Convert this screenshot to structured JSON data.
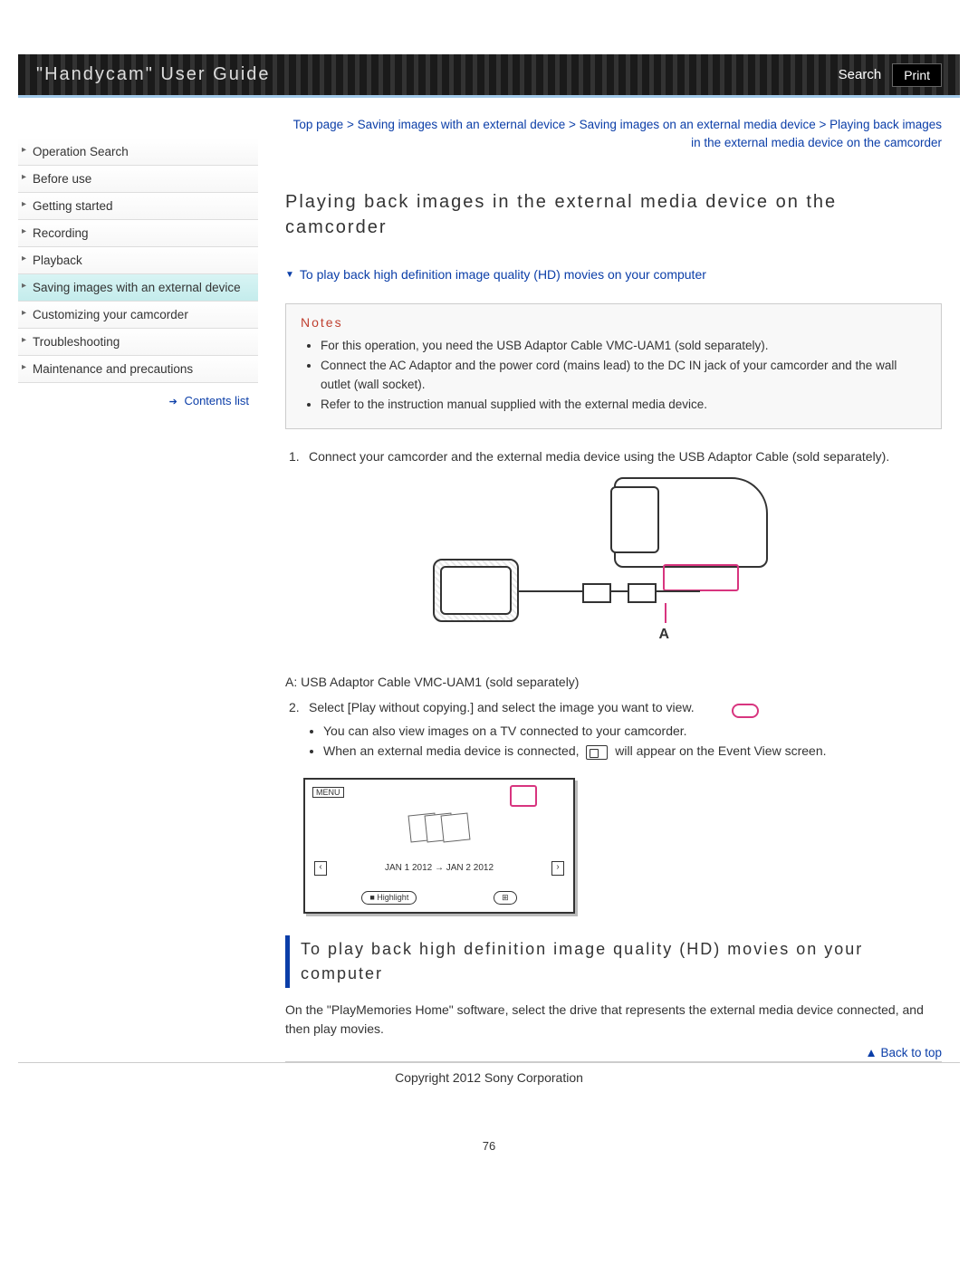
{
  "header": {
    "title": "\"Handycam\" User Guide",
    "search": "Search",
    "print": "Print"
  },
  "sidebar": {
    "items": [
      {
        "label": "Operation Search",
        "active": false
      },
      {
        "label": "Before use",
        "active": false
      },
      {
        "label": "Getting started",
        "active": false
      },
      {
        "label": "Recording",
        "active": false
      },
      {
        "label": "Playback",
        "active": false
      },
      {
        "label": "Saving images with an external device",
        "active": true
      },
      {
        "label": "Customizing your camcorder",
        "active": false
      },
      {
        "label": "Troubleshooting",
        "active": false
      },
      {
        "label": "Maintenance and precautions",
        "active": false
      }
    ],
    "contents_list": "Contents list"
  },
  "breadcrumb": {
    "parts": [
      "Top page",
      "Saving images with an external device",
      "Saving images on an external media device",
      "Playing back images in the external media device on the camcorder"
    ]
  },
  "page_title": "Playing back images in the external media device on the camcorder",
  "jump_link": "To play back high definition image quality (HD) movies on your computer",
  "notes": {
    "title": "Notes",
    "items": [
      "For this operation, you need the USB Adaptor Cable VMC-UAM1 (sold separately).",
      "Connect the AC Adaptor and the power cord (mains lead) to the DC IN jack of your camcorder and the wall outlet (wall socket).",
      "Refer to the instruction manual supplied with the external media device."
    ]
  },
  "steps": [
    {
      "num": "1.",
      "text": "Connect your camcorder and the external media device using the USB Adaptor Cable (sold separately)."
    },
    {
      "num": "2.",
      "text": "Select [Play without copying.] and select the image you want to view."
    }
  ],
  "diagram_caption_a": "A: USB Adaptor Cable VMC-UAM1 (sold separately)",
  "diagram_label_a": "A",
  "substeps": [
    "You can also view images on a TV connected to your camcorder.",
    "When an external media device is connected,        will appear on the Event View screen."
  ],
  "screen": {
    "menu": "MENU",
    "dates": "JAN 1 2012 → JAN 2 2012",
    "highlight": "■ Highlight",
    "grid": "⊞"
  },
  "section_heading": "To play back high definition image quality (HD) movies on your computer",
  "section_body": "On the \"PlayMemories Home\" software, select the drive that represents the external media device connected, and then play movies.",
  "back_to_top": "Back to top",
  "copyright": "Copyright 2012 Sony Corporation",
  "page_number": "76",
  "colors": {
    "link": "#0b3ea8",
    "notes_title": "#c04030",
    "active_bg": "#c4ecec",
    "highlight": "#d8357f"
  }
}
